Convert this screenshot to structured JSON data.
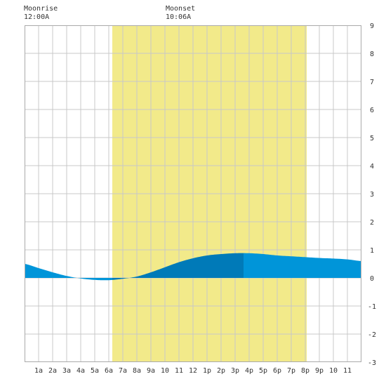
{
  "header": {
    "moonrise_label": "Moonrise",
    "moonrise_time": "12:00A",
    "moonset_label": "Moonset",
    "moonset_time": "10:06A"
  },
  "colors": {
    "background": "#ffffff",
    "grid": "#c8c8c8",
    "daylight": "#f2ea8a",
    "tide_light": "#0095d9",
    "tide_dark": "#007ab8",
    "text": "#333333"
  },
  "chart_data": {
    "type": "area",
    "title": "",
    "xlabel": "",
    "ylabel": "",
    "x_unit": "hour of day",
    "xlim": [
      0,
      24
    ],
    "ylim": [
      -3,
      9
    ],
    "grid": true,
    "daylight_span": [
      6.25,
      20.1
    ],
    "dark_segment": [
      6.25,
      15.6
    ],
    "x_ticks": [
      {
        "x": 1,
        "label": "1a"
      },
      {
        "x": 2,
        "label": "2a"
      },
      {
        "x": 3,
        "label": "3a"
      },
      {
        "x": 4,
        "label": "4a"
      },
      {
        "x": 5,
        "label": "5a"
      },
      {
        "x": 6,
        "label": "6a"
      },
      {
        "x": 7,
        "label": "7a"
      },
      {
        "x": 8,
        "label": "8a"
      },
      {
        "x": 9,
        "label": "9a"
      },
      {
        "x": 10,
        "label": "10"
      },
      {
        "x": 11,
        "label": "11"
      },
      {
        "x": 12,
        "label": "12"
      },
      {
        "x": 13,
        "label": "1p"
      },
      {
        "x": 14,
        "label": "2p"
      },
      {
        "x": 15,
        "label": "3p"
      },
      {
        "x": 16,
        "label": "4p"
      },
      {
        "x": 17,
        "label": "5p"
      },
      {
        "x": 18,
        "label": "6p"
      },
      {
        "x": 19,
        "label": "7p"
      },
      {
        "x": 20,
        "label": "8p"
      },
      {
        "x": 21,
        "label": "9p"
      },
      {
        "x": 22,
        "label": "10"
      },
      {
        "x": 23,
        "label": "11"
      }
    ],
    "y_ticks": [
      9,
      8,
      7,
      6,
      5,
      4,
      3,
      2,
      1,
      0,
      -1,
      -2,
      -3
    ],
    "series": [
      {
        "x": [
          0,
          1,
          2,
          3,
          4,
          5,
          6,
          7,
          8,
          9,
          10,
          11,
          12,
          13,
          14,
          15,
          16,
          17,
          18,
          19,
          20,
          21,
          22,
          23,
          24
        ],
        "y": [
          0.5,
          0.35,
          0.2,
          0.07,
          -0.02,
          -0.07,
          -0.08,
          -0.03,
          0.05,
          0.2,
          0.38,
          0.56,
          0.7,
          0.8,
          0.85,
          0.88,
          0.88,
          0.85,
          0.8,
          0.77,
          0.74,
          0.71,
          0.69,
          0.66,
          0.6
        ]
      }
    ]
  }
}
